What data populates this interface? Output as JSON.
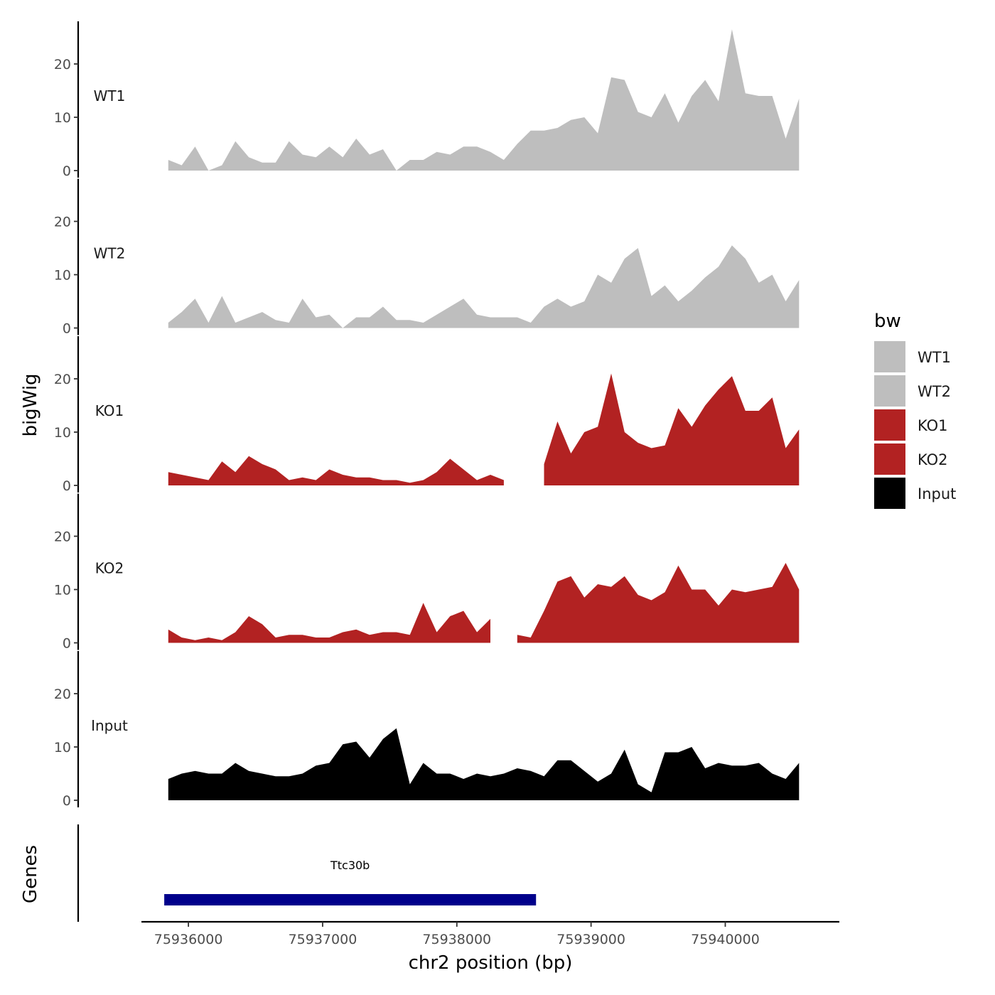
{
  "chart_data": {
    "type": "area",
    "title": "",
    "xlabel": "chr2 position (bp)",
    "ylabel": "bigWig",
    "genes_panel_label": "Genes",
    "xlim": [
      75935650,
      75940850
    ],
    "x_ticks": [
      75936000,
      75937000,
      75938000,
      75939000,
      75940000
    ],
    "x_tick_labels": [
      "75936000",
      "75937000",
      "75938000",
      "75939000",
      "75940000"
    ],
    "ylim": [
      0,
      28
    ],
    "y_ticks": [
      0,
      10,
      20
    ],
    "y_tick_labels": [
      "0",
      "10",
      "20"
    ],
    "grid": false,
    "legend": {
      "title": "bw",
      "position": "right",
      "entries": [
        {
          "label": "WT1",
          "color": "#bebebe"
        },
        {
          "label": "WT2",
          "color": "#bebebe"
        },
        {
          "label": "KO1",
          "color": "#b22222"
        },
        {
          "label": "KO2",
          "color": "#b22222"
        },
        {
          "label": "Input",
          "color": "#000000"
        }
      ]
    },
    "x": [
      75935850,
      75935950,
      75936050,
      75936150,
      75936250,
      75936350,
      75936450,
      75936550,
      75936650,
      75936750,
      75936850,
      75936950,
      75937050,
      75937150,
      75937250,
      75937350,
      75937450,
      75937550,
      75937650,
      75937750,
      75937850,
      75937950,
      75938050,
      75938150,
      75938250,
      75938350,
      75938450,
      75938550,
      75938650,
      75938750,
      75938850,
      75938950,
      75939050,
      75939150,
      75939250,
      75939350,
      75939450,
      75939550,
      75939650,
      75939750,
      75939850,
      75939950,
      75940050,
      75940150,
      75940250,
      75940350,
      75940450,
      75940550
    ],
    "series": [
      {
        "name": "WT1",
        "color": "#bebebe",
        "values": [
          2,
          1,
          4.5,
          0,
          1,
          5.5,
          2.5,
          1.5,
          1.5,
          5.5,
          3,
          2.5,
          4.5,
          2.5,
          6,
          3,
          4,
          0,
          2,
          2,
          3.5,
          3,
          4.5,
          4.5,
          3.5,
          2,
          5,
          7.5,
          7.5,
          8,
          9.5,
          10,
          7,
          17.5,
          17,
          11,
          10,
          14.5,
          9,
          14,
          17,
          13,
          26.5,
          14.5,
          14,
          14,
          6,
          13.5
        ]
      },
      {
        "name": "WT2",
        "color": "#bebebe",
        "values": [
          1,
          3,
          5.5,
          1,
          6,
          1,
          2,
          3,
          1.5,
          1,
          5.5,
          2,
          2.5,
          0,
          2,
          2,
          4,
          1.5,
          1.5,
          1,
          2.5,
          4,
          5.5,
          2.5,
          2,
          2,
          2,
          1,
          4,
          5.5,
          4,
          5,
          10,
          8.5,
          13,
          15,
          6,
          8,
          5,
          7,
          9.5,
          11.5,
          15.5,
          13,
          8.5,
          10,
          5,
          9
        ]
      },
      {
        "name": "KO1",
        "color": "#b22222",
        "values": [
          2.5,
          2,
          1.5,
          1,
          4.5,
          2.5,
          5.5,
          4,
          3,
          1,
          1.5,
          1,
          3,
          2,
          1.5,
          1.5,
          1,
          1,
          0.5,
          1,
          2.5,
          5,
          3,
          1,
          2,
          1,
          null,
          null,
          4,
          12,
          6,
          10,
          11,
          21,
          10,
          8,
          7,
          7.5,
          14.5,
          11,
          15,
          18,
          20.5,
          14,
          14,
          16.5,
          7,
          10.5
        ]
      },
      {
        "name": "KO2",
        "color": "#b22222",
        "values": [
          2.5,
          1,
          0.5,
          1,
          0.5,
          2,
          5,
          3.5,
          1,
          1.5,
          1.5,
          1,
          1,
          2,
          2.5,
          1.5,
          2,
          2,
          1.5,
          7.5,
          2,
          5,
          6,
          2,
          4.5,
          null,
          1.5,
          1,
          6,
          11.5,
          12.5,
          8.5,
          11,
          10.5,
          12.5,
          9,
          8,
          9.5,
          14.5,
          10,
          10,
          7,
          10,
          9.5,
          10,
          10.5,
          15,
          10
        ]
      },
      {
        "name": "Input",
        "color": "#000000",
        "values": [
          4,
          5,
          5.5,
          5,
          5,
          7,
          5.5,
          5,
          4.5,
          4.5,
          5,
          6.5,
          7,
          10.5,
          11,
          8,
          11.5,
          13.5,
          3,
          7,
          5,
          5,
          4,
          5,
          4.5,
          5,
          6,
          5.5,
          4.5,
          7.5,
          7.5,
          5.5,
          3.5,
          5,
          9.5,
          3,
          1.5,
          9,
          9,
          10,
          6,
          7,
          6.5,
          6.5,
          7,
          5,
          4,
          7
        ]
      }
    ],
    "genes": [
      {
        "name": "Ttc30b",
        "start": 75935820,
        "end": 75938590,
        "color": "#00008b"
      }
    ]
  }
}
